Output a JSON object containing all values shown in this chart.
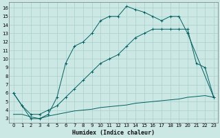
{
  "xlabel": "Humidex (Indice chaleur)",
  "background_color": "#cce8e4",
  "grid_color": "#aacfcc",
  "line_color": "#006060",
  "xlim": [
    -0.5,
    23.5
  ],
  "ylim": [
    2.5,
    16.7
  ],
  "xticks": [
    0,
    1,
    2,
    3,
    4,
    5,
    6,
    7,
    8,
    9,
    10,
    11,
    12,
    13,
    14,
    15,
    16,
    17,
    18,
    19,
    20,
    21,
    22,
    23
  ],
  "yticks": [
    3,
    4,
    5,
    6,
    7,
    8,
    9,
    10,
    11,
    12,
    13,
    14,
    15,
    16
  ],
  "series1_x": [
    0,
    1,
    2,
    3,
    4,
    5,
    6,
    7,
    8,
    9,
    10,
    11,
    12,
    13,
    14,
    15,
    16,
    17,
    18,
    19,
    20,
    23
  ],
  "series1_y": [
    6,
    4.5,
    3.0,
    3.0,
    3.5,
    5.5,
    9.5,
    11.5,
    12.0,
    13.0,
    14.5,
    15.0,
    15.0,
    16.2,
    15.8,
    15.5,
    15.0,
    14.5,
    15.0,
    15.0,
    13.0,
    5.5
  ],
  "series2_x": [
    0,
    1,
    2,
    3,
    4,
    5,
    6,
    7,
    8,
    9,
    10,
    11,
    12,
    13,
    14,
    15,
    16,
    17,
    18,
    19,
    20,
    21,
    22,
    23
  ],
  "series2_y": [
    6.0,
    4.5,
    3.5,
    3.5,
    4.0,
    4.5,
    5.5,
    6.5,
    7.5,
    8.5,
    9.5,
    10.0,
    10.5,
    11.5,
    12.5,
    13.0,
    13.5,
    13.5,
    13.5,
    13.5,
    13.5,
    9.5,
    9.0,
    5.5
  ],
  "series3_x": [
    0,
    1,
    2,
    3,
    4,
    5,
    6,
    7,
    8,
    9,
    10,
    11,
    12,
    13,
    14,
    15,
    16,
    17,
    18,
    19,
    20,
    21,
    22,
    23
  ],
  "series3_y": [
    3.5,
    3.5,
    3.2,
    3.0,
    3.3,
    3.5,
    3.7,
    3.9,
    4.0,
    4.1,
    4.3,
    4.4,
    4.5,
    4.6,
    4.8,
    4.9,
    5.0,
    5.1,
    5.2,
    5.3,
    5.5,
    5.6,
    5.7,
    5.5
  ]
}
